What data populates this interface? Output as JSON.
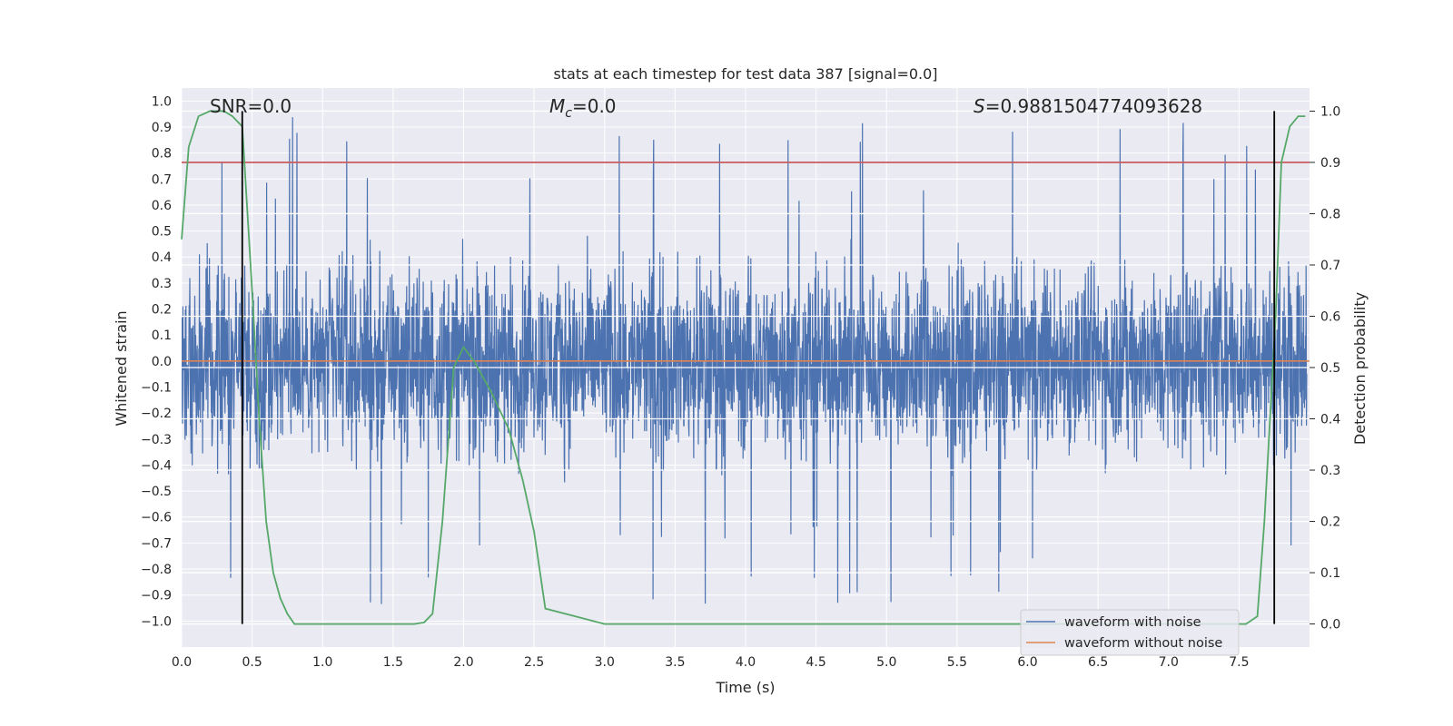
{
  "chart_data": {
    "type": "line",
    "title": "stats at each timestep for test data 387 [signal=0.0]",
    "xlabel": "Time (s)",
    "ylabel": "Whitened strain",
    "y2label": "Detection probability",
    "xlim": [
      0.0,
      8.0
    ],
    "ylim": [
      -1.1,
      1.05
    ],
    "y2lim": [
      -0.045,
      1.045
    ],
    "xticks": [
      0.0,
      0.5,
      1.0,
      1.5,
      2.0,
      2.5,
      3.0,
      3.5,
      4.0,
      4.5,
      5.0,
      5.5,
      6.0,
      6.5,
      7.0,
      7.5
    ],
    "xtick_labels": [
      "0.0",
      "0.5",
      "1.0",
      "1.5",
      "2.0",
      "2.5",
      "3.0",
      "3.5",
      "4.0",
      "4.5",
      "5.0",
      "5.5",
      "6.0",
      "6.5",
      "7.0",
      "7.5"
    ],
    "yticks": [
      1.0,
      0.9,
      0.8,
      0.7,
      0.6,
      0.5,
      0.4,
      0.3,
      0.2,
      0.1,
      0.0,
      -0.1,
      -0.2,
      -0.3,
      -0.4,
      -0.5,
      -0.6,
      -0.7,
      -0.8,
      -0.9,
      -1.0
    ],
    "ytick_labels": [
      "1.0",
      "0.9",
      "0.8",
      "0.7",
      "0.6",
      "0.5",
      "0.4",
      "0.3",
      "0.2",
      "0.1",
      "0.0",
      "−0.1",
      "−0.2",
      "−0.3",
      "−0.4",
      "−0.5",
      "−0.6",
      "−0.7",
      "−0.8",
      "−0.9",
      "−1.0"
    ],
    "y2ticks": [
      1.0,
      0.9,
      0.8,
      0.7,
      0.6,
      0.5,
      0.4,
      0.3,
      0.2,
      0.1,
      0.0
    ],
    "y2tick_labels": [
      "1.0",
      "0.9",
      "0.8",
      "0.7",
      "0.6",
      "0.5",
      "0.4",
      "0.3",
      "0.2",
      "0.1",
      "0.0"
    ],
    "annotations": {
      "snr": "SNR=0.0",
      "mc_symbol": "M",
      "mc_sub": "c",
      "mc_value": "=0.0",
      "s_symbol": "S",
      "s_value": "=0.9881504774093628"
    },
    "noise_waveform": {
      "name": "waveform with noise",
      "color": "#4c72b0",
      "note": "dense noisy whitened strain, amplitude mostly within ±0.6 with spikes to ~0.95 and ~-1.0",
      "typical_max": 0.6,
      "peak_max": 0.96,
      "peak_min": -1.0
    },
    "clean_waveform": {
      "name": "waveform without noise",
      "color": "#dd8452",
      "value": 0.0
    },
    "threshold": {
      "y2": 0.9,
      "color": "#c44e52"
    },
    "vlines": [
      0.43,
      7.75
    ],
    "probability": {
      "color": "#55a868",
      "t": [
        0.0,
        0.05,
        0.12,
        0.2,
        0.3,
        0.36,
        0.43,
        0.5,
        0.55,
        0.6,
        0.65,
        0.7,
        0.75,
        0.8,
        1.0,
        1.5,
        1.65,
        1.72,
        1.78,
        1.85,
        1.93,
        2.0,
        2.08,
        2.2,
        2.32,
        2.42,
        2.5,
        2.58,
        3.0,
        5.0,
        7.0,
        7.55,
        7.63,
        7.68,
        7.72,
        7.76,
        7.8,
        7.86,
        7.92,
        7.97
      ],
      "p": [
        0.75,
        0.93,
        0.99,
        1.0,
        1.0,
        0.99,
        0.97,
        0.65,
        0.4,
        0.2,
        0.1,
        0.05,
        0.02,
        0.0,
        0.0,
        0.0,
        0.0,
        0.003,
        0.02,
        0.2,
        0.5,
        0.54,
        0.51,
        0.45,
        0.38,
        0.28,
        0.18,
        0.03,
        0.0,
        0.0,
        0.0,
        0.0,
        0.015,
        0.2,
        0.4,
        0.6,
        0.9,
        0.97,
        0.99,
        0.99
      ]
    },
    "legend": {
      "position": "lower right",
      "entries": [
        {
          "label": "waveform with noise",
          "color": "#4c72b0"
        },
        {
          "label": "waveform without noise",
          "color": "#dd8452"
        }
      ]
    },
    "grid": true
  }
}
